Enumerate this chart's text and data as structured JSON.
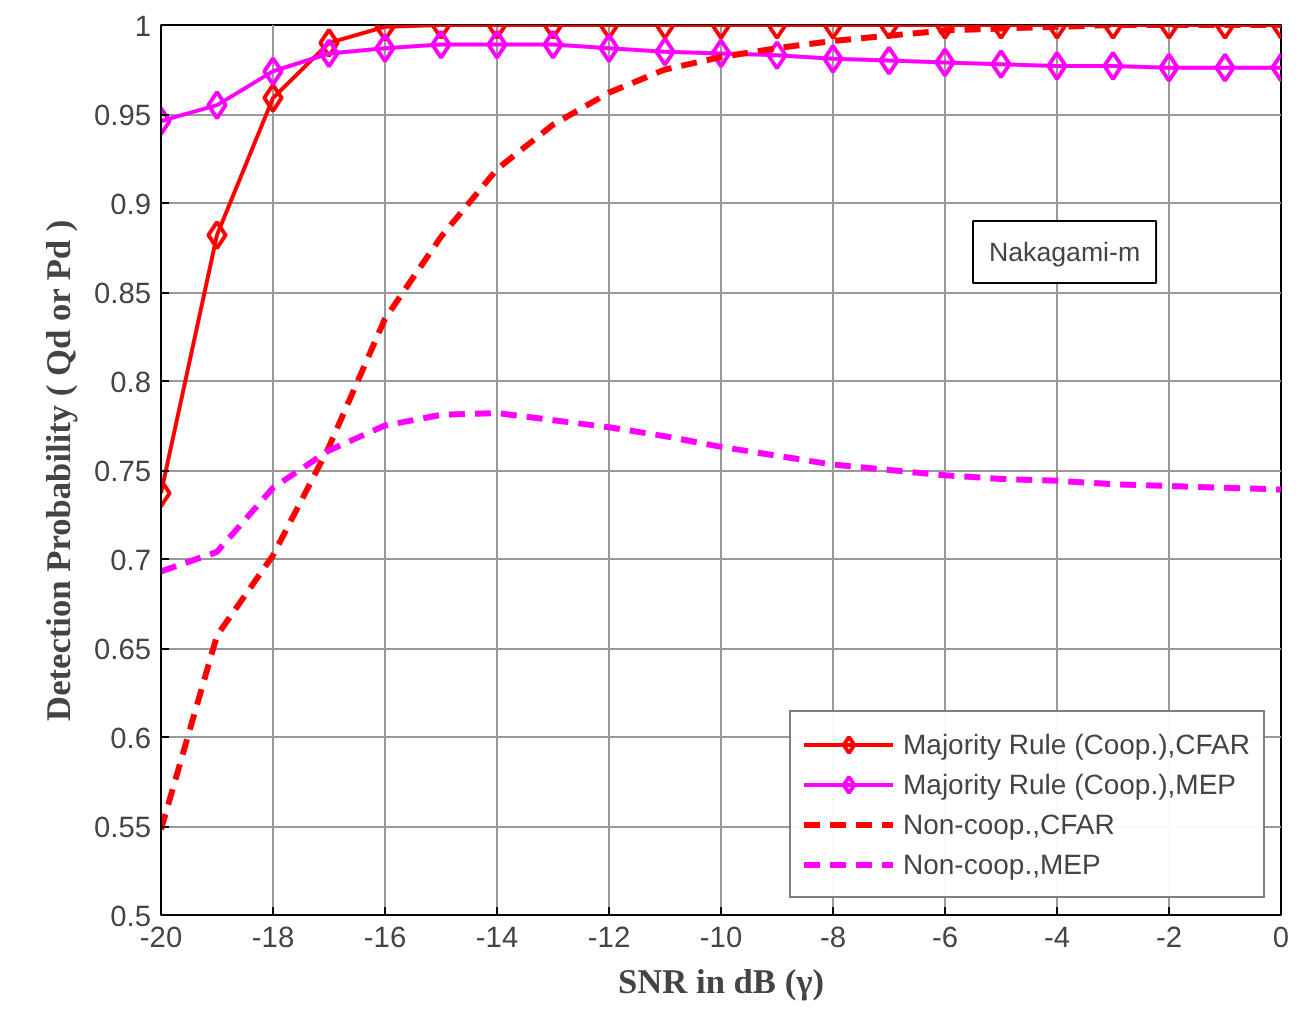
{
  "chart_data": {
    "type": "line",
    "xlabel": "SNR in dB (γ)",
    "ylabel": "Detection Probability ( Qd or Pd )",
    "x": [
      -20,
      -19,
      -18,
      -17,
      -16,
      -15,
      -14,
      -13,
      -12,
      -11,
      -10,
      -9,
      -8,
      -7,
      -6,
      -5,
      -4,
      -3,
      -2,
      -1,
      0
    ],
    "series": [
      {
        "name": "Majority Rule (Coop.),CFAR",
        "color": "#ff0000",
        "marker": "diamond",
        "line_style": "solid",
        "values": [
          0.737,
          0.882,
          0.959,
          0.99,
          0.999,
          1,
          1,
          1,
          1,
          1,
          1,
          1,
          1,
          1,
          1,
          1,
          1,
          1,
          1,
          1,
          1
        ]
      },
      {
        "name": "Majority Rule (Coop.),MEP",
        "color": "#ff00ff",
        "marker": "diamond",
        "line_style": "solid",
        "values": [
          0.946,
          0.955,
          0.974,
          0.984,
          0.987,
          0.989,
          0.989,
          0.989,
          0.987,
          0.985,
          0.984,
          0.983,
          0.981,
          0.98,
          0.979,
          0.978,
          0.977,
          0.977,
          0.976,
          0.976,
          0.976
        ]
      },
      {
        "name": "Non-coop.,CFAR",
        "color": "#ff0000",
        "marker": "none",
        "line_style": "dashed",
        "values": [
          0.548,
          0.657,
          0.702,
          0.763,
          0.835,
          0.881,
          0.919,
          0.944,
          0.962,
          0.975,
          0.982,
          0.987,
          0.991,
          0.994,
          0.997,
          0.998,
          0.999,
          1,
          1,
          1,
          1
        ]
      },
      {
        "name": "Non-coop.,MEP",
        "color": "#ff00ff",
        "marker": "none",
        "line_style": "dashed",
        "values": [
          0.693,
          0.704,
          0.74,
          0.761,
          0.775,
          0.781,
          0.782,
          0.778,
          0.774,
          0.769,
          0.763,
          0.758,
          0.753,
          0.75,
          0.747,
          0.745,
          0.744,
          0.742,
          0.741,
          0.74,
          0.739
        ]
      }
    ],
    "annotations": [
      "Nakagami-m"
    ],
    "xlim": [
      -20,
      0
    ],
    "ylim": [
      0.5,
      1
    ],
    "xticks": [
      -20,
      -18,
      -16,
      -14,
      -12,
      -10,
      -8,
      -6,
      -4,
      -2,
      0
    ],
    "yticks": [
      0.5,
      0.55,
      0.6,
      0.65,
      0.7,
      0.75,
      0.8,
      0.85,
      0.9,
      0.95,
      1
    ],
    "grid": true,
    "legend": "bottom right"
  }
}
